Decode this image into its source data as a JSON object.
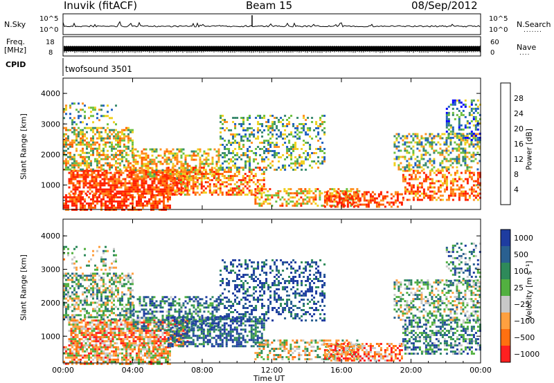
{
  "header": {
    "station": "Inuvik (fitACF)",
    "beam": "Beam 15",
    "date": "08/Sep/2012"
  },
  "panels": {
    "nsky": {
      "left_label": "N.Sky",
      "right_label": "N.Search",
      "right_dots": ".......",
      "left_tick_top": "10^5",
      "left_tick_bottom": "10^0",
      "right_tick_top": "10^5",
      "right_tick_bottom": "10^0"
    },
    "freq": {
      "label_line1": "Freq.",
      "label_line2": "[MHz]",
      "left_tick_top": "18",
      "left_tick_bottom": "8",
      "right_label": "Nave",
      "right_dots": "....",
      "right_tick_top": "60",
      "right_tick_bottom": "0"
    },
    "cpid": {
      "label": "CPID",
      "program": "twofsound 3501"
    }
  },
  "chart_data": [
    {
      "type": "heatmap",
      "name": "power",
      "ylabel": "Slant Range [km]",
      "yticks": [
        "1000",
        "2000",
        "3000",
        "4000"
      ],
      "ylim": [
        200,
        4500
      ],
      "xlim": [
        0,
        24
      ],
      "colorbar": {
        "label": "Power [dB]",
        "ticks": [
          "4",
          "8",
          "12",
          "16",
          "20",
          "24",
          "28"
        ],
        "range": [
          0,
          30
        ],
        "colors": [
          "#0000ff",
          "#2060c0",
          "#3a8a6e",
          "#6cc040",
          "#f0d020",
          "#ff9020",
          "#ff6000",
          "#ff2000"
        ]
      }
    },
    {
      "type": "heatmap",
      "name": "velocity",
      "ylabel": "Slant Range [km]",
      "yticks": [
        "1000",
        "2000",
        "3000",
        "4000"
      ],
      "ylim": [
        200,
        4500
      ],
      "xlim": [
        0,
        24
      ],
      "xlabel": "Time UT",
      "xticks": [
        "00:00",
        "04:00",
        "08:00",
        "12:00",
        "16:00",
        "20:00",
        "00:00"
      ],
      "colorbar": {
        "label": "Velocity [m s⁻¹]",
        "ticks": [
          "1000",
          "500",
          "100",
          "25",
          "−25",
          "−100",
          "−500",
          "−1000"
        ],
        "colors": [
          "#1e3ca0",
          "#2a6090",
          "#2e8a5a",
          "#52b040",
          "#c8c8c8",
          "#ffa040",
          "#ff7010",
          "#ff2020"
        ]
      }
    }
  ]
}
